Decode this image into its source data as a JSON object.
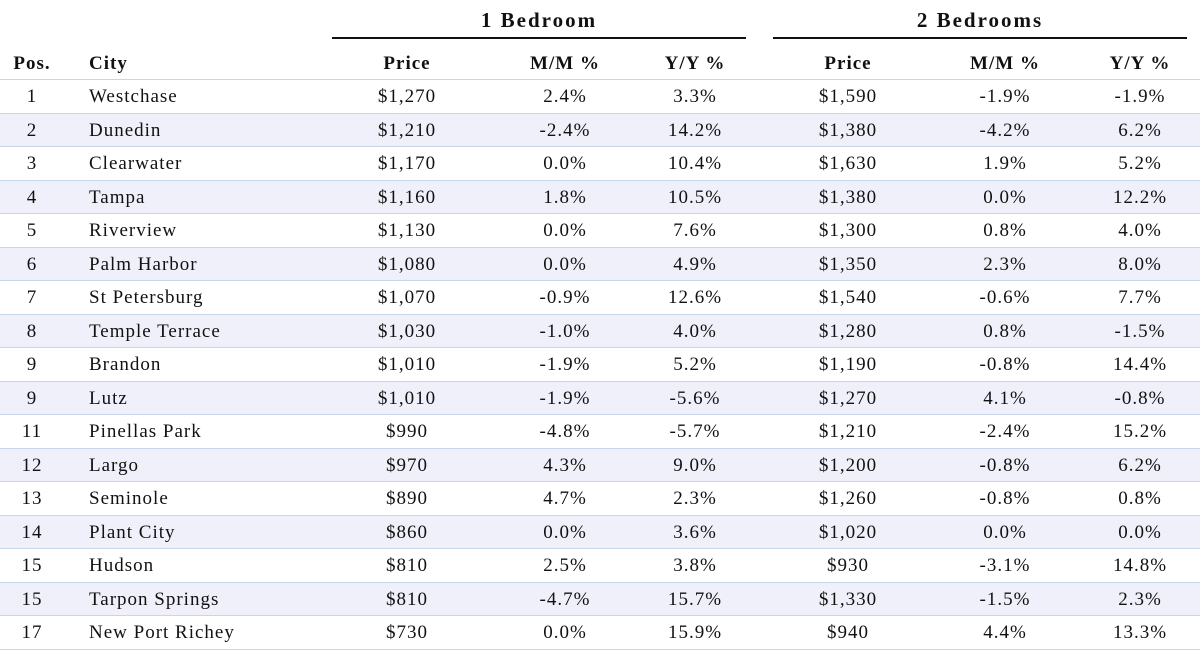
{
  "table": {
    "groups": [
      "1 Bedroom",
      "2 Bedrooms"
    ],
    "columns": [
      "Pos.",
      "City",
      "Price",
      "M/M %",
      "Y/Y %",
      "Price",
      "M/M %",
      "Y/Y %"
    ],
    "rows": [
      [
        "1",
        "Westchase",
        "$1,270",
        "2.4%",
        "3.3%",
        "$1,590",
        "-1.9%",
        "-1.9%"
      ],
      [
        "2",
        "Dunedin",
        "$1,210",
        "-2.4%",
        "14.2%",
        "$1,380",
        "-4.2%",
        "6.2%"
      ],
      [
        "3",
        "Clearwater",
        "$1,170",
        "0.0%",
        "10.4%",
        "$1,630",
        "1.9%",
        "5.2%"
      ],
      [
        "4",
        "Tampa",
        "$1,160",
        "1.8%",
        "10.5%",
        "$1,380",
        "0.0%",
        "12.2%"
      ],
      [
        "5",
        "Riverview",
        "$1,130",
        "0.0%",
        "7.6%",
        "$1,300",
        "0.8%",
        "4.0%"
      ],
      [
        "6",
        "Palm Harbor",
        "$1,080",
        "0.0%",
        "4.9%",
        "$1,350",
        "2.3%",
        "8.0%"
      ],
      [
        "7",
        "St Petersburg",
        "$1,070",
        "-0.9%",
        "12.6%",
        "$1,540",
        "-0.6%",
        "7.7%"
      ],
      [
        "8",
        "Temple Terrace",
        "$1,030",
        "-1.0%",
        "4.0%",
        "$1,280",
        "0.8%",
        "-1.5%"
      ],
      [
        "9",
        "Brandon",
        "$1,010",
        "-1.9%",
        "5.2%",
        "$1,190",
        "-0.8%",
        "14.4%"
      ],
      [
        "9",
        "Lutz",
        "$1,010",
        "-1.9%",
        "-5.6%",
        "$1,270",
        "4.1%",
        "-0.8%"
      ],
      [
        "11",
        "Pinellas Park",
        "$990",
        "-4.8%",
        "-5.7%",
        "$1,210",
        "-2.4%",
        "15.2%"
      ],
      [
        "12",
        "Largo",
        "$970",
        "4.3%",
        "9.0%",
        "$1,200",
        "-0.8%",
        "6.2%"
      ],
      [
        "13",
        "Seminole",
        "$890",
        "4.7%",
        "2.3%",
        "$1,260",
        "-0.8%",
        "0.8%"
      ],
      [
        "14",
        "Plant City",
        "$860",
        "0.0%",
        "3.6%",
        "$1,020",
        "0.0%",
        "0.0%"
      ],
      [
        "15",
        "Hudson",
        "$810",
        "2.5%",
        "3.8%",
        "$930",
        "-3.1%",
        "14.8%"
      ],
      [
        "15",
        "Tarpon Springs",
        "$810",
        "-4.7%",
        "15.7%",
        "$1,330",
        "-1.5%",
        "2.3%"
      ],
      [
        "17",
        "New Port Richey",
        "$730",
        "0.0%",
        "15.9%",
        "$940",
        "4.4%",
        "13.3%"
      ]
    ]
  }
}
